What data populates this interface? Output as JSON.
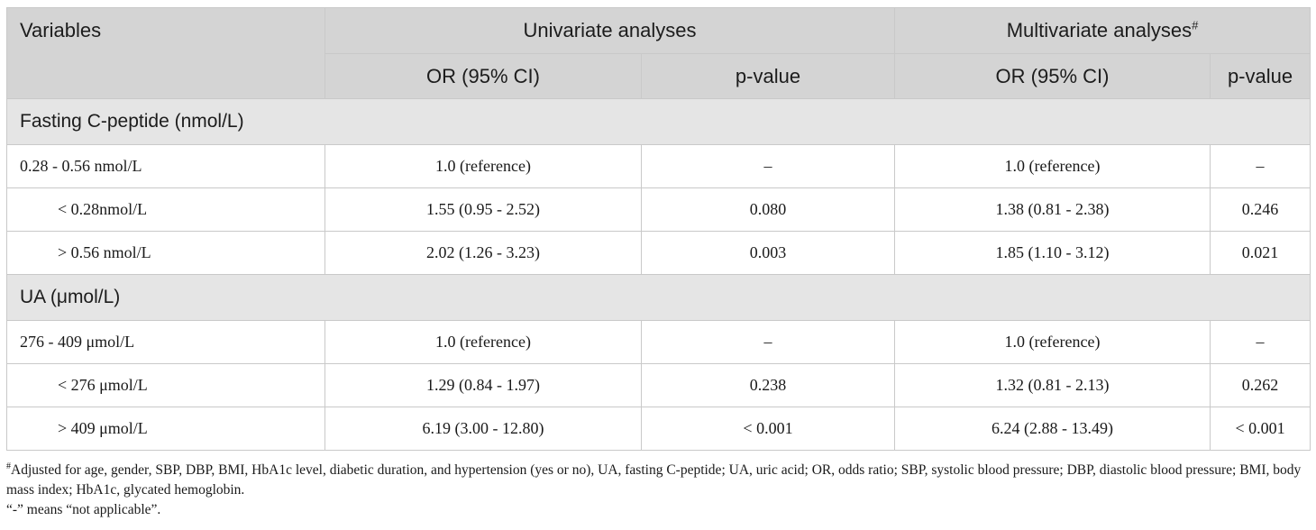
{
  "header": {
    "variables": "Variables",
    "univariate": "Univariate analyses",
    "multivariate": "Multivariate analyses",
    "multivariate_mark": "#",
    "or_ci": "OR (95% CI)",
    "p_value": "p-value"
  },
  "groups": [
    {
      "title": "Fasting C-peptide (nmol/L)",
      "rows": [
        {
          "var": "0.28 - 0.56 nmol/L",
          "uni_or": "1.0 (reference)",
          "uni_p": "–",
          "multi_or": "1.0 (reference)",
          "multi_p": "–"
        },
        {
          "var": "< 0.28nmol/L",
          "uni_or": "1.55 (0.95 - 2.52)",
          "uni_p": "0.080",
          "multi_or": "1.38 (0.81 - 2.38)",
          "multi_p": "0.246"
        },
        {
          "var": "> 0.56 nmol/L",
          "uni_or": "2.02 (1.26 - 3.23)",
          "uni_p": "0.003",
          "multi_or": "1.85 (1.10 - 3.12)",
          "multi_p": "0.021"
        }
      ]
    },
    {
      "title": "UA (μmol/L)",
      "rows": [
        {
          "var": "276 - 409 μmol/L",
          "uni_or": "1.0 (reference)",
          "uni_p": "–",
          "multi_or": "1.0 (reference)",
          "multi_p": "–"
        },
        {
          "var": "< 276 μmol/L",
          "uni_or": "1.29 (0.84 - 1.97)",
          "uni_p": "0.238",
          "multi_or": "1.32 (0.81 - 2.13)",
          "multi_p": "0.262"
        },
        {
          "var": "> 409 μmol/L",
          "uni_or": "6.19 (3.00 - 12.80)",
          "uni_p": "< 0.001",
          "multi_or": "6.24 (2.88 - 13.49)",
          "multi_p": "< 0.001"
        }
      ]
    }
  ],
  "footnotes": {
    "mark": "#",
    "adjusted": "Adjusted for age, gender, SBP, DBP, BMI, HbA1c level, diabetic duration, and hypertension (yes or no), UA, fasting C-peptide; UA, uric acid; OR, odds ratio; SBP, systolic blood pressure; DBP, diastolic blood pressure; BMI, body mass index; HbA1c, glycated hemoglobin.",
    "dash_note": "“-” means “not applicable”."
  }
}
